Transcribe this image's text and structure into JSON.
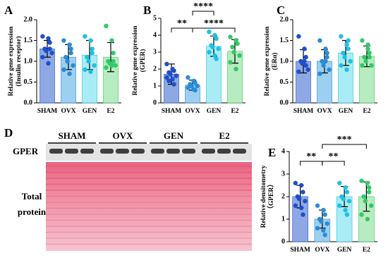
{
  "chart_data": [
    {
      "type": "bar",
      "panel": "A",
      "ylabel": [
        "Relative gene expression",
        "(Insulin receptor)"
      ],
      "categories": [
        "SHAM",
        "OVX",
        "GEN",
        "E2"
      ],
      "values": [
        1.3,
        1.1,
        1.15,
        1.1
      ],
      "errors": [
        0.2,
        0.3,
        0.35,
        0.35
      ],
      "points": [
        [
          1.6,
          1.55,
          1.45,
          1.3,
          1.25,
          1.2,
          1.1,
          0.95,
          1.3
        ],
        [
          1.5,
          1.4,
          1.2,
          1.1,
          1.0,
          0.9,
          0.8,
          0.7,
          1.3
        ],
        [
          1.6,
          1.5,
          1.3,
          1.1,
          1.0,
          0.9,
          0.8,
          0.75,
          1.2
        ],
        [
          1.85,
          1.5,
          1.2,
          1.0,
          0.95,
          0.9,
          0.85,
          0.9,
          1.0
        ]
      ],
      "colors": [
        "#8ea8e4",
        "#9ccff0",
        "#a9ecf6",
        "#b6ecbf"
      ],
      "point_colors": [
        "#1f4fc8",
        "#2a8bd6",
        "#1fc0e0",
        "#33c866"
      ],
      "ylim": [
        0,
        2.0
      ],
      "yticks": [
        {
          "value": 0,
          "label": "0.0"
        },
        {
          "value": 0.5,
          "label": "0.5"
        },
        {
          "value": 1.0,
          "label": "1.0"
        },
        {
          "value": 1.5,
          "label": "1.5"
        },
        {
          "value": 2.0,
          "label": "2.0"
        }
      ],
      "annotations": []
    },
    {
      "type": "bar",
      "panel": "B",
      "ylabel": [
        "Relative gene expression",
        "(GPER)"
      ],
      "categories": [
        "SHAM",
        "OVX",
        "GEN",
        "E2"
      ],
      "values": [
        1.7,
        1.05,
        3.35,
        3.05
      ],
      "errors": [
        0.6,
        0.3,
        0.6,
        0.7
      ],
      "points": [
        [
          2.3,
          2.0,
          1.9,
          1.8,
          1.7,
          1.6,
          1.5,
          1.4,
          1.1,
          1.3
        ],
        [
          1.5,
          1.3,
          1.2,
          1.1,
          1.0,
          1.0,
          0.9,
          0.8,
          0.75
        ],
        [
          4.2,
          4.0,
          3.8,
          3.4,
          3.3,
          3.2,
          3.0,
          2.8,
          2.6
        ],
        [
          3.9,
          3.7,
          3.5,
          3.3,
          3.0,
          2.8,
          2.4,
          2.0
        ]
      ],
      "colors": [
        "#8ea8e4",
        "#9ccff0",
        "#a9ecf6",
        "#b6ecbf"
      ],
      "point_colors": [
        "#1f4fc8",
        "#2a8bd6",
        "#1fc0e0",
        "#33c866"
      ],
      "ylim": [
        0,
        5
      ],
      "yticks": [
        0,
        1,
        2,
        3,
        4,
        5
      ],
      "annotations": [
        {
          "text": "**",
          "from": 0,
          "to": 1
        },
        {
          "text": "****",
          "from": 1,
          "to": 3
        },
        {
          "text": "****",
          "from": 1,
          "to": 2
        }
      ]
    },
    {
      "type": "bar",
      "panel": "C",
      "ylabel": [
        "Relative gene expression",
        "(ERα)"
      ],
      "categories": [
        "SHAM",
        "OVX",
        "GEN",
        "E2"
      ],
      "values": [
        1.0,
        1.0,
        1.2,
        1.12
      ],
      "errors": [
        0.28,
        0.28,
        0.3,
        0.25
      ],
      "points": [
        [
          1.6,
          1.3,
          1.1,
          1.0,
          0.95,
          0.8,
          0.75,
          1.0,
          0.9
        ],
        [
          1.5,
          1.3,
          1.1,
          1.0,
          0.9,
          0.8,
          0.7,
          1.0,
          1.2
        ],
        [
          1.6,
          1.4,
          1.3,
          1.2,
          1.1,
          1.0,
          0.9,
          0.8,
          1.5
        ],
        [
          1.5,
          1.3,
          1.2,
          1.1,
          1.0,
          0.9,
          0.9,
          1.4,
          1.1
        ]
      ],
      "colors": [
        "#8ea8e4",
        "#9ccff0",
        "#a9ecf6",
        "#b6ecbf"
      ],
      "point_colors": [
        "#1f4fc8",
        "#2a8bd6",
        "#1fc0e0",
        "#33c866"
      ],
      "ylim": [
        0,
        2.0
      ],
      "yticks": [
        {
          "value": 0,
          "label": "0.0"
        },
        {
          "value": 0.5,
          "label": "0.5"
        },
        {
          "value": 1.0,
          "label": "1.0"
        },
        {
          "value": 1.5,
          "label": "1.5"
        },
        {
          "value": 2.0,
          "label": "2.0"
        }
      ],
      "annotations": []
    },
    {
      "type": "bar",
      "panel": "E",
      "ylabel": [
        "Relative densitometry",
        "（GPER）"
      ],
      "categories": [
        "SHAM",
        "OVX",
        "GEN",
        "E2"
      ],
      "values": [
        2.0,
        1.0,
        2.0,
        2.0
      ],
      "errors": [
        0.5,
        0.4,
        0.45,
        0.65
      ],
      "points": [
        [
          2.6,
          2.5,
          2.2,
          2.0,
          1.9,
          1.8,
          1.6,
          1.5,
          1.2
        ],
        [
          1.6,
          1.4,
          1.2,
          1.0,
          0.9,
          0.8,
          0.6,
          0.5,
          0.3
        ],
        [
          2.6,
          2.4,
          2.2,
          2.0,
          1.9,
          1.8,
          1.6,
          1.4,
          1.2
        ],
        [
          2.7,
          2.6,
          2.2,
          2.0,
          1.8,
          1.6,
          1.2,
          1.0,
          2.4
        ]
      ],
      "colors": [
        "#8ea8e4",
        "#9ccff0",
        "#a9ecf6",
        "#b6ecbf"
      ],
      "point_colors": [
        "#1f4fc8",
        "#2a8bd6",
        "#1fc0e0",
        "#33c866"
      ],
      "ylim": [
        0,
        4
      ],
      "yticks": [
        0,
        1,
        2,
        3,
        4
      ],
      "annotations": [
        {
          "text": "**",
          "from": 0,
          "to": 1
        },
        {
          "text": "**",
          "from": 1,
          "to": 2
        },
        {
          "text": "***",
          "from": 1,
          "to": 3
        }
      ]
    }
  ],
  "blot": {
    "panel": "D",
    "groups": [
      "SHAM",
      "OVX",
      "GEN",
      "E2"
    ],
    "band_label": "GPER",
    "total_label": [
      "Total",
      "protein"
    ]
  }
}
